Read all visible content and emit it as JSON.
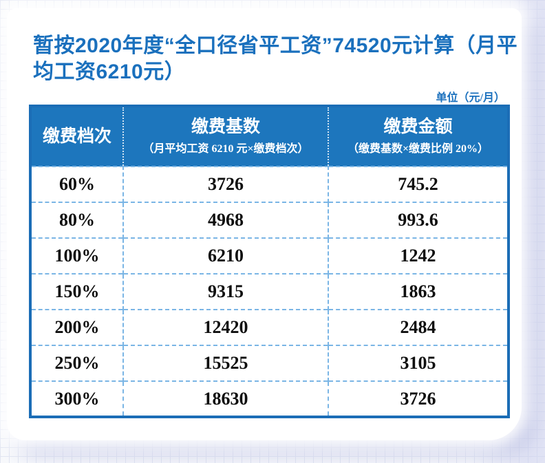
{
  "title": "暂按2020年度“全口径省平工资”74520元计算（月平均工资6210元）",
  "unit_label": "单位（元/月）",
  "table": {
    "columns": [
      {
        "label": "缴费档次",
        "sublabel": ""
      },
      {
        "label": "缴费基数",
        "sublabel": "（月平均工资 6210 元×缴费档次）"
      },
      {
        "label": "缴费金额",
        "sublabel": "（缴费基数×缴费比例 20%）"
      }
    ],
    "rows": [
      {
        "tier": "60%",
        "base": "3726",
        "amount": "745.2"
      },
      {
        "tier": "80%",
        "base": "4968",
        "amount": "993.6"
      },
      {
        "tier": "100%",
        "base": "6210",
        "amount": "1242"
      },
      {
        "tier": "150%",
        "base": "9315",
        "amount": "1863"
      },
      {
        "tier": "200%",
        "base": "12420",
        "amount": "2484"
      },
      {
        "tier": "250%",
        "base": "15525",
        "amount": "3105"
      },
      {
        "tier": "300%",
        "base": "18630",
        "amount": "3726"
      }
    ]
  },
  "colors": {
    "title_blue": "#1a70bd",
    "header_bg": "#1d76bd",
    "table_border": "#1b6db6",
    "divider": "#7ab5e5",
    "grid_line": "#e2e6f2",
    "shadow": "#9aa2d6"
  }
}
